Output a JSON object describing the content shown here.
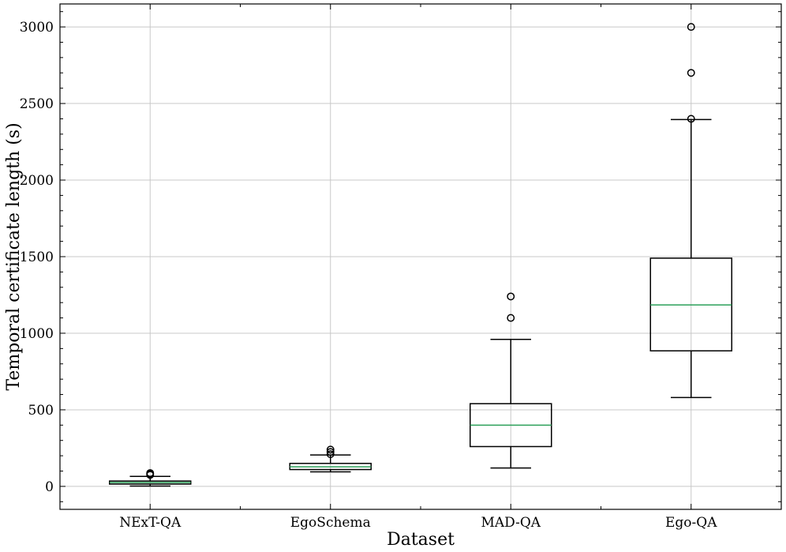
{
  "chart_data": {
    "type": "boxplot",
    "xlabel": "Dataset",
    "ylabel": "Temporal certificate length (s)",
    "categories": [
      "NExT-QA",
      "EgoSchema",
      "MAD-QA",
      "Ego-QA"
    ],
    "yticks": [
      0,
      500,
      1000,
      1500,
      2000,
      2500,
      3000
    ],
    "ylim": [
      -150,
      3150
    ],
    "grid": true,
    "median_color": "#2ca05a",
    "boxes": [
      {
        "category": "NExT-QA",
        "whisker_low": 2,
        "q1": 15,
        "median": 25,
        "q3": 35,
        "whisker_high": 65,
        "fliers": [
          75,
          82,
          87
        ]
      },
      {
        "category": "EgoSchema",
        "whisker_low": 95,
        "q1": 110,
        "median": 128,
        "q3": 150,
        "whisker_high": 205,
        "fliers": [
          210,
          225,
          240
        ]
      },
      {
        "category": "MAD-QA",
        "whisker_low": 120,
        "q1": 260,
        "median": 400,
        "q3": 540,
        "whisker_high": 960,
        "fliers": [
          1100,
          1240
        ]
      },
      {
        "category": "Ego-QA",
        "whisker_low": 580,
        "q1": 885,
        "median": 1185,
        "q3": 1490,
        "whisker_high": 2395,
        "fliers": [
          2400,
          2700,
          3000
        ]
      }
    ]
  }
}
